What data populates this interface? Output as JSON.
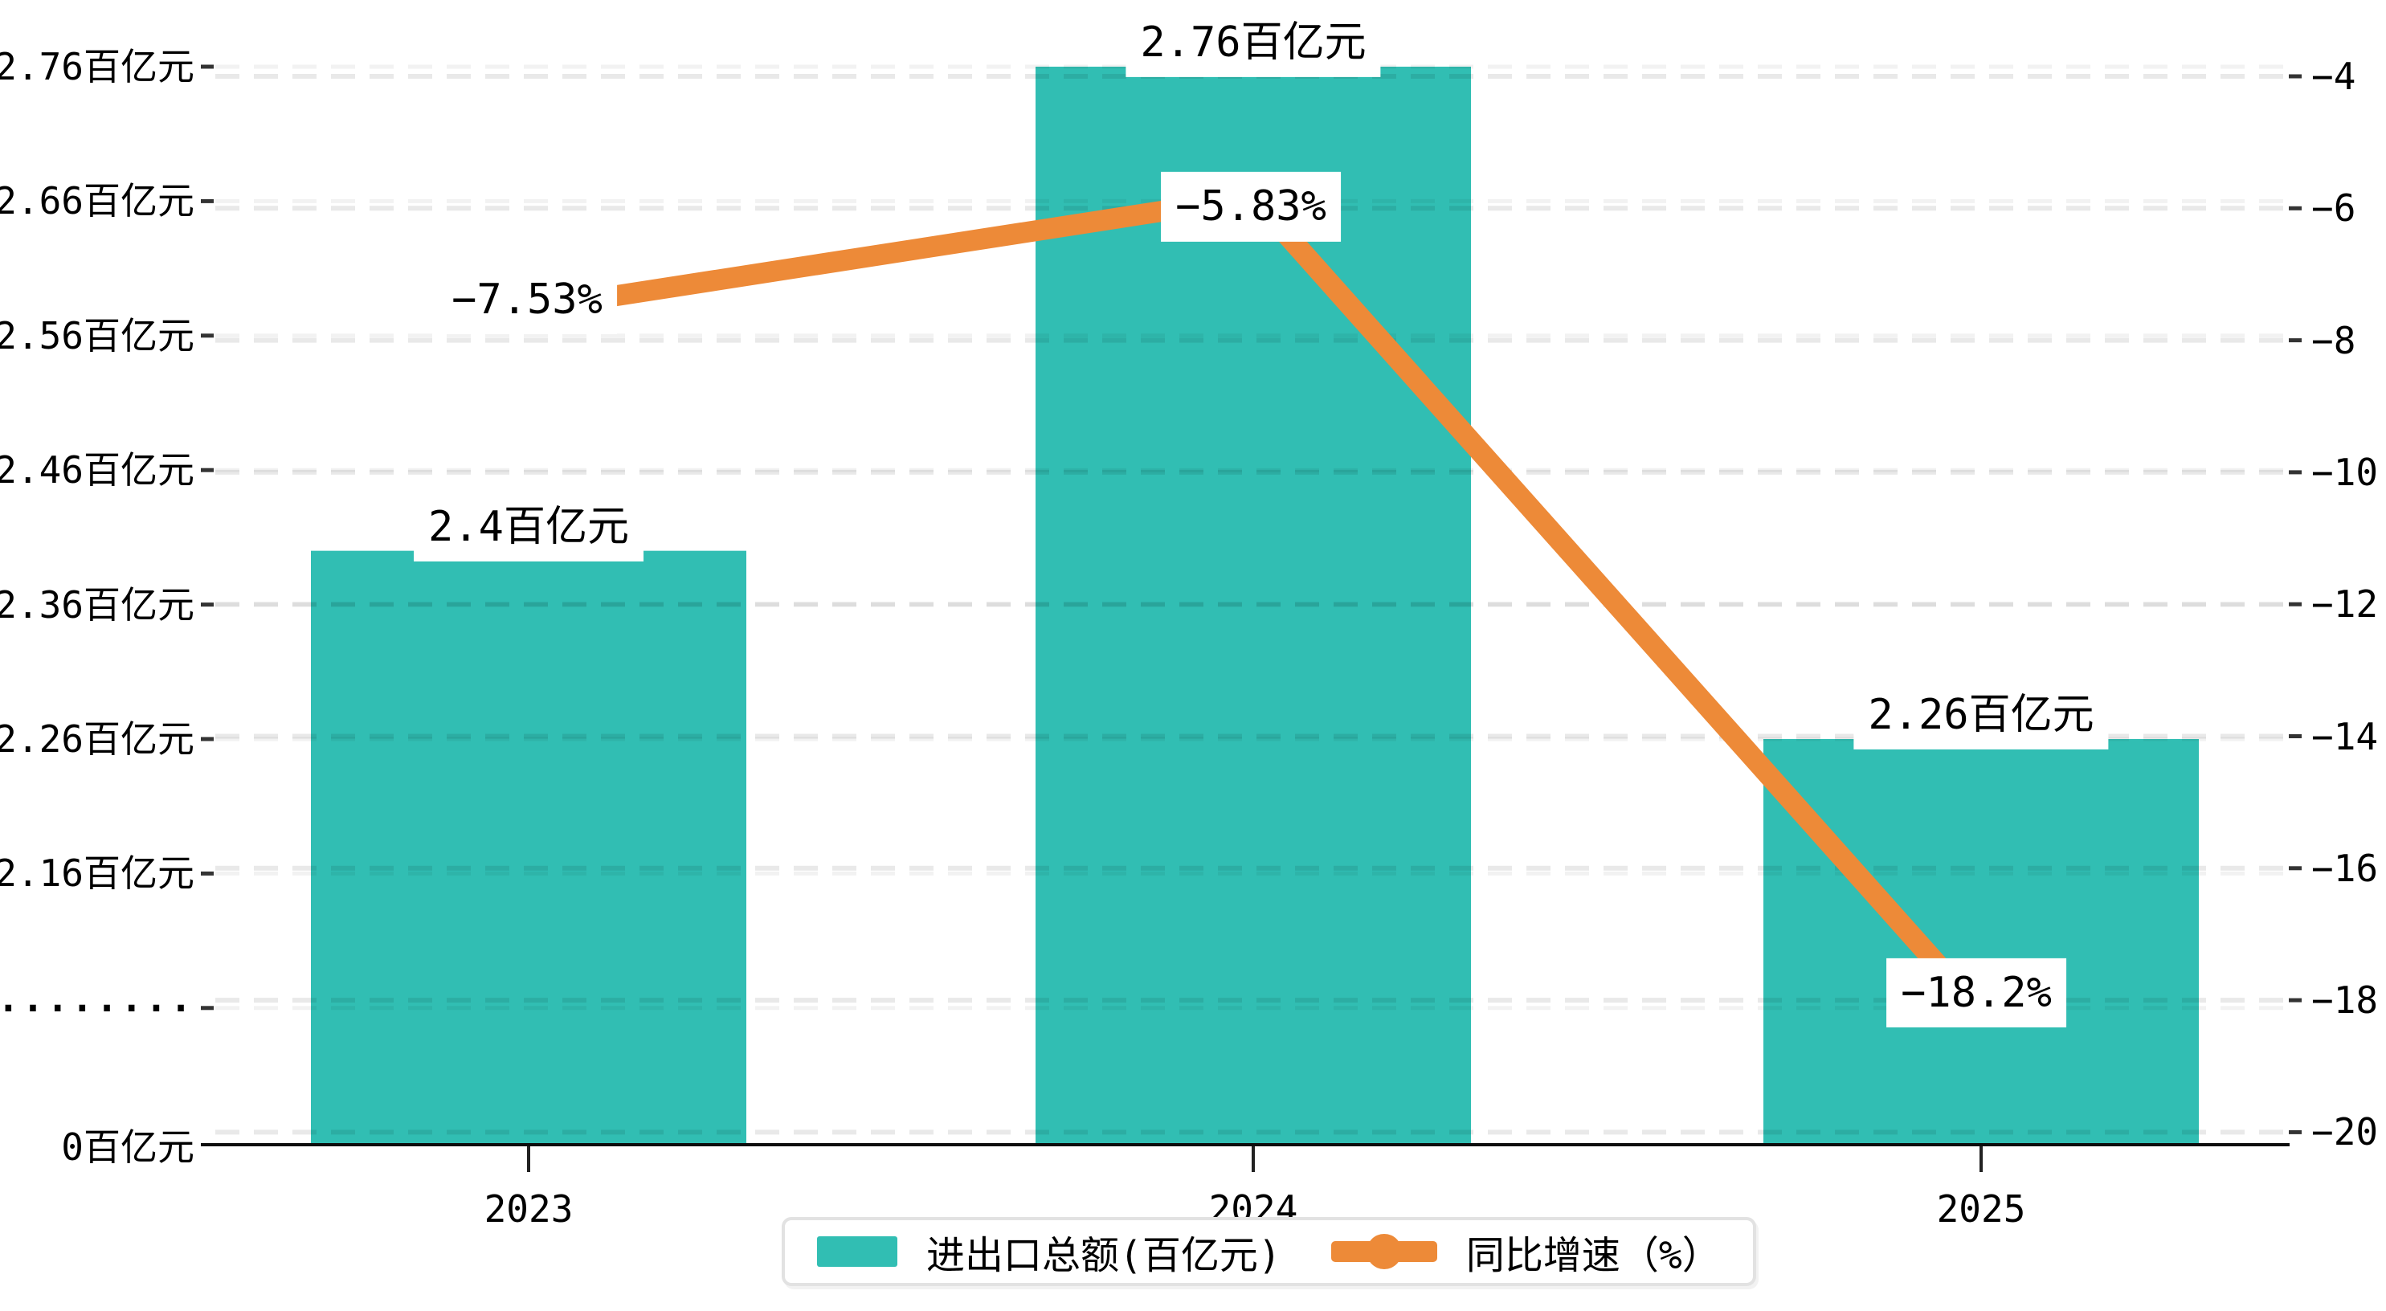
{
  "chart_data": {
    "type": "bar+line",
    "categories": [
      "2023",
      "2024",
      "2025"
    ],
    "series": [
      {
        "name": "进出口总额(百亿元)",
        "type": "bar",
        "unit": "百亿元",
        "values": [
          2.4,
          2.76,
          2.26
        ],
        "data_labels": [
          "2.4百亿元",
          "2.76百亿元",
          "2.26百亿元"
        ]
      },
      {
        "name": "同比增速（%）",
        "type": "line",
        "unit": "%",
        "values": [
          -7.53,
          -5.83,
          -18.2
        ],
        "data_labels": [
          "−7.53%",
          "−5.83%",
          "−18.2%"
        ]
      }
    ],
    "left_axis": {
      "tick_labels": [
        "2.76百亿元",
        "2.66百亿元",
        "2.56百亿元",
        "2.46百亿元",
        "2.36百亿元",
        "2.26百亿元",
        "2.16百亿元",
        "·········",
        "0百亿元"
      ],
      "axis_break": true,
      "min": 0,
      "max": 2.76
    },
    "right_axis": {
      "tick_labels": [
        "−4",
        "−6",
        "−8",
        "−10",
        "−12",
        "−14",
        "−16",
        "−18",
        "−20"
      ],
      "min": -20,
      "max": -4
    },
    "grid": true,
    "legend_position": "bottom"
  },
  "legend": {
    "items": [
      {
        "label": "进出口总额(百亿元)",
        "marker": "bar-swatch"
      },
      {
        "label": "同比增速（%）",
        "marker": "line-dot"
      }
    ]
  },
  "colors": {
    "bar": "#31beb3",
    "line": "#ed8a38",
    "axis": "#0d0d0d",
    "tick": "#333333",
    "grid_left": "rgba(0,0,0,0.05)",
    "grid_right": "rgba(0,0,0,0.085)",
    "label_bg": "#ffffff",
    "legend_border": "#e2e2e2"
  }
}
